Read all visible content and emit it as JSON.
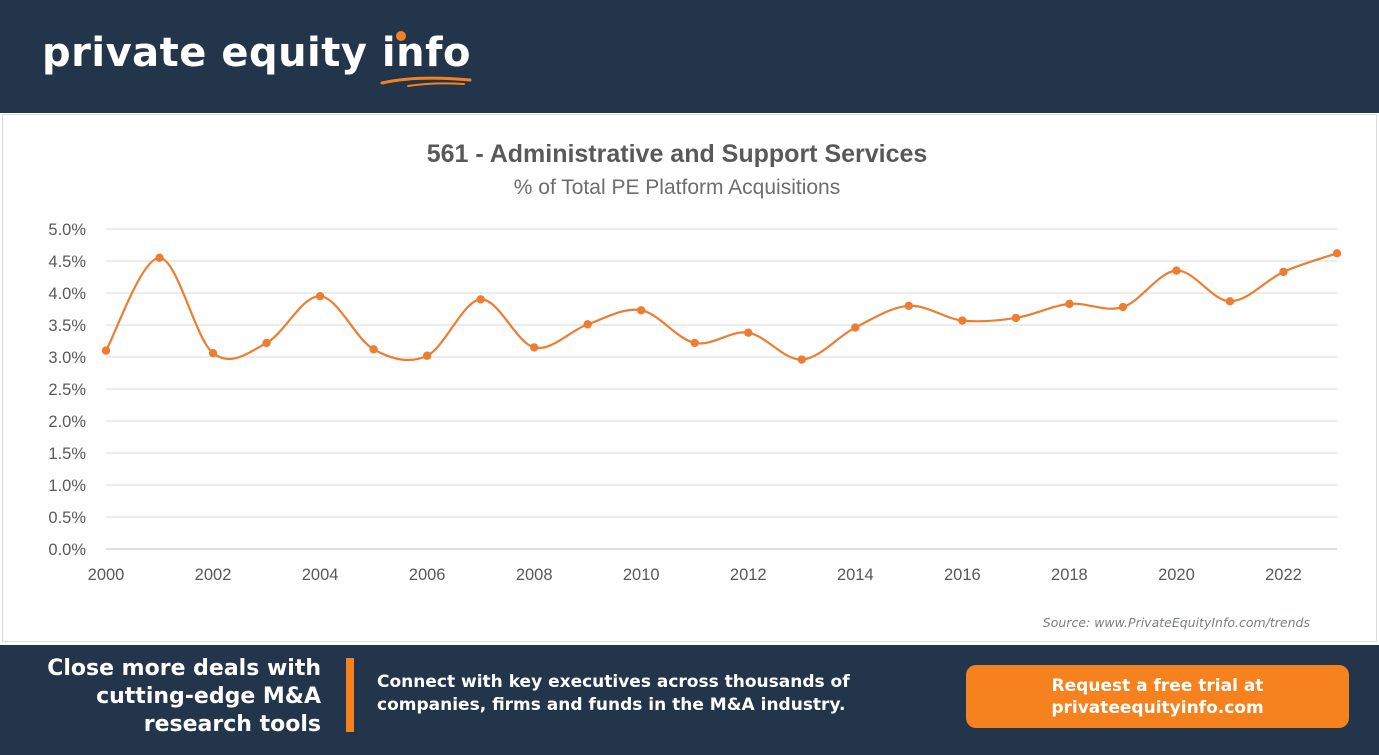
{
  "brand": {
    "logo_main": "private equity",
    "logo_accent": "info",
    "accent_color": "#f5821f",
    "navy_color": "#22354a"
  },
  "chart_data": {
    "type": "line",
    "title": "561 - Administrative and Support Services",
    "subtitle": "% of Total PE Platform Acquisitions",
    "x": [
      2000,
      2001,
      2002,
      2003,
      2004,
      2005,
      2006,
      2007,
      2008,
      2009,
      2010,
      2011,
      2012,
      2013,
      2014,
      2015,
      2016,
      2017,
      2018,
      2019,
      2020,
      2021,
      2022,
      2023
    ],
    "series": [
      {
        "values": [
          3.1,
          4.55,
          3.06,
          3.22,
          3.95,
          3.12,
          3.02,
          3.9,
          3.15,
          3.51,
          3.73,
          3.22,
          3.38,
          2.96,
          3.46,
          3.8,
          3.57,
          3.61,
          3.83,
          3.78,
          4.35,
          3.87,
          4.33,
          4.62
        ],
        "color": "#ed7d31"
      }
    ],
    "xlim": [
      2000,
      2023
    ],
    "ylim": [
      0,
      5
    ],
    "y_ticks": [
      "0.0%",
      "0.5%",
      "1.0%",
      "1.5%",
      "2.0%",
      "2.5%",
      "3.0%",
      "3.5%",
      "4.0%",
      "4.5%",
      "5.0%"
    ],
    "x_ticks": [
      "2000",
      "2002",
      "2004",
      "2006",
      "2008",
      "2010",
      "2012",
      "2014",
      "2016",
      "2018",
      "2020",
      "2022"
    ],
    "grid": true,
    "legend": "none"
  },
  "source_text": "Source: www.PrivateEquityInfo.com/trends",
  "footer": {
    "tagline": "Close more deals with cutting-edge M&A research tools",
    "connect_text": "Connect with key executives across thousands of companies, firms and funds in the M&A industry.",
    "cta_label": "Request a free trial at privateequityinfo.com"
  }
}
